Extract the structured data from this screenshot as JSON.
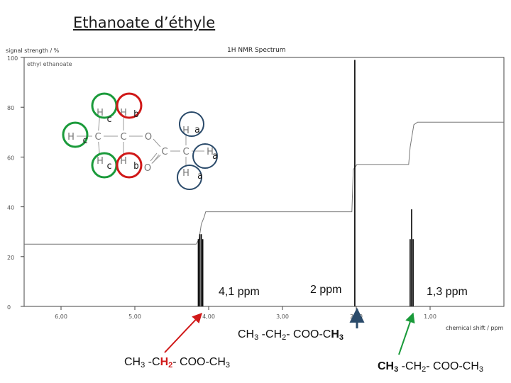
{
  "title": "Ethanoate d’éthyle",
  "chart_data": {
    "type": "line",
    "title": "1H NMR Spectrum",
    "ylabel": "signal strength / %",
    "xlabel": "chemical shift / ppm",
    "legend_entry": "ethyl ethanoate",
    "xlim": [
      6.5,
      0
    ],
    "ylim": [
      0,
      100
    ],
    "x_ticks": [
      6.0,
      5.0,
      4.0,
      3.0,
      2.0,
      1.0
    ],
    "x_tick_labels": [
      "6,00",
      "5,00",
      "4,00",
      "3,00",
      "2,00",
      "1,00"
    ],
    "y_ticks": [
      0,
      20,
      40,
      60,
      80,
      100
    ],
    "y_tick_labels": [
      "0",
      "20",
      "40",
      "60",
      "80",
      "100"
    ],
    "grid": false,
    "series": [
      {
        "name": "spectrum",
        "peaks": [
          {
            "x": 4.08,
            "y": 27
          },
          {
            "x": 4.1,
            "y": 29
          },
          {
            "x": 4.12,
            "y": 29
          },
          {
            "x": 4.14,
            "y": 27
          },
          {
            "x": 2.02,
            "y": 99
          },
          {
            "x": 1.23,
            "y": 27
          },
          {
            "x": 1.25,
            "y": 39
          },
          {
            "x": 1.27,
            "y": 27
          }
        ]
      },
      {
        "name": "integration",
        "points": [
          [
            6.5,
            25
          ],
          [
            4.17,
            25
          ],
          [
            4.13,
            27
          ],
          [
            4.1,
            33
          ],
          [
            4.06,
            36
          ],
          [
            4.04,
            38
          ],
          [
            2.06,
            38
          ],
          [
            2.04,
            55
          ],
          [
            1.99,
            57
          ],
          [
            1.29,
            57
          ],
          [
            1.27,
            64
          ],
          [
            1.22,
            73
          ],
          [
            1.17,
            74
          ],
          [
            0,
            74
          ]
        ]
      }
    ]
  },
  "molecule": {
    "atoms": [
      "H",
      "H",
      "H",
      "C",
      "H",
      "H",
      "C",
      "O",
      "O",
      "C",
      "C",
      "H",
      "H",
      "H"
    ],
    "labels": [
      "c",
      "c",
      "c",
      "b",
      "b",
      "a",
      "a",
      "a"
    ]
  },
  "peak_labels": [
    "4,1 ppm",
    "2 ppm",
    "1,3 ppm"
  ],
  "formulas": {
    "f1": {
      "a": "CH",
      "a_sub": "3",
      "b": " -CH",
      "b_sub": "2",
      "c": "- COO-C",
      "d": "H",
      "e": "3"
    },
    "f2": {
      "a": "CH",
      "a_sub": "3",
      "b": " -C",
      "c": "H",
      "c_sub": "2",
      "d": "- COO-CH",
      "e": "3"
    },
    "f3": {
      "a": "CH",
      "a_sub": "3",
      "b": " -CH",
      "b_sub": "2",
      "c": "- COO-CH",
      "d": "3"
    }
  },
  "colors": {
    "green": "#1a9a3a",
    "red": "#d01818",
    "blue": "#2a4a6a",
    "peak": "#000000",
    "integration": "#777777"
  }
}
